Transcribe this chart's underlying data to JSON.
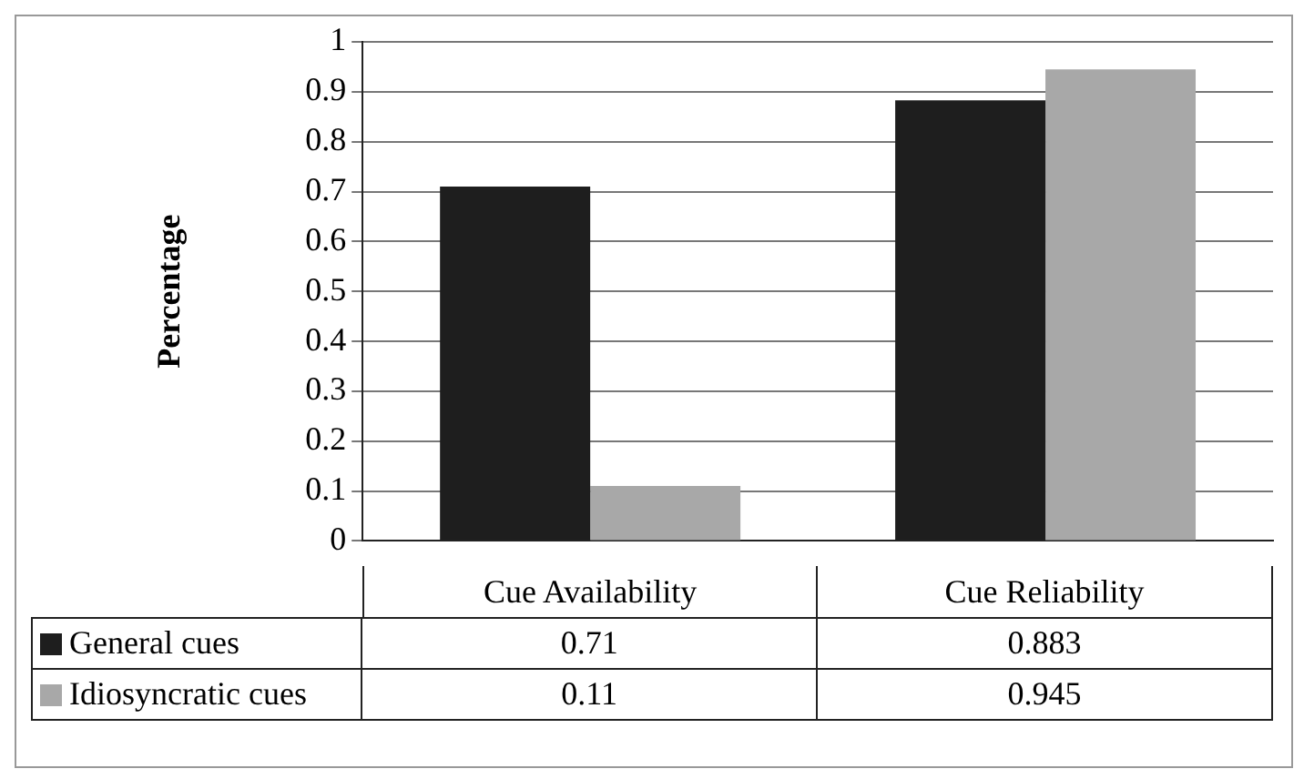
{
  "chart_data": {
    "type": "bar",
    "ylabel": "Percentage",
    "categories": [
      "Cue Availability",
      "Cue Reliability"
    ],
    "series": [
      {
        "name": "General cues",
        "color": "#1e1e1e",
        "values": [
          0.71,
          0.883
        ]
      },
      {
        "name": "Idiosyncratic cues",
        "color": "#a8a8a8",
        "values": [
          0.11,
          0.945
        ]
      }
    ],
    "ylim": [
      0,
      1
    ],
    "yticks": [
      0,
      0.1,
      0.2,
      0.3,
      0.4,
      0.5,
      0.6,
      0.7,
      0.8,
      0.9,
      1
    ],
    "grid": "y",
    "legend": "bottom",
    "data_labels": true
  }
}
